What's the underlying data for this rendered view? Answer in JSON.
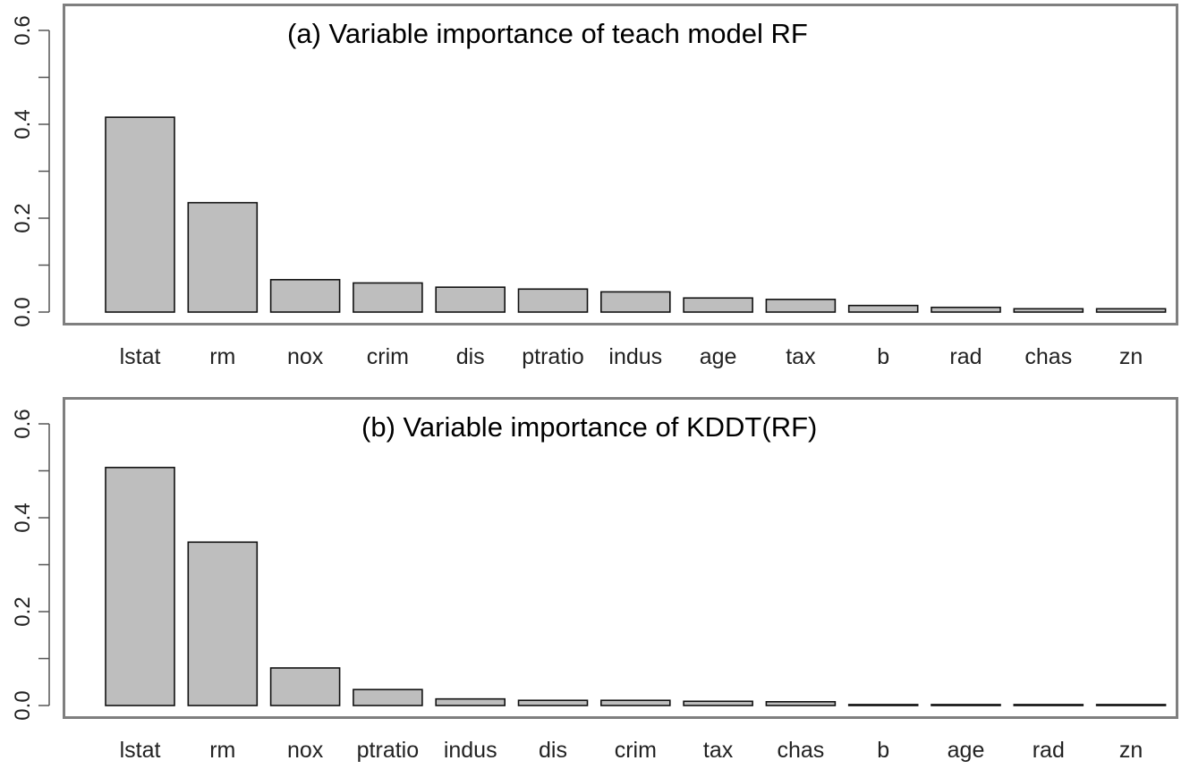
{
  "chart_data": [
    {
      "type": "bar",
      "title": "(a) Variable importance of teach model RF",
      "xlabel": "",
      "ylabel": "",
      "ylim": [
        0,
        0.6
      ],
      "yticks": [
        "0.0",
        "0.2",
        "0.4",
        "0.6"
      ],
      "categories": [
        "lstat",
        "rm",
        "nox",
        "crim",
        "dis",
        "ptratio",
        "indus",
        "age",
        "tax",
        "b",
        "rad",
        "chas",
        "zn"
      ],
      "values": [
        0.415,
        0.233,
        0.069,
        0.062,
        0.053,
        0.049,
        0.043,
        0.03,
        0.027,
        0.014,
        0.01,
        0.007,
        0.007
      ],
      "bar_color": "#bebebe",
      "frame_color": "#7f7f7f"
    },
    {
      "type": "bar",
      "title": "(b) Variable importance of KDDT(RF)",
      "xlabel": "",
      "ylabel": "",
      "ylim": [
        0,
        0.6
      ],
      "yticks": [
        "0.0",
        "0.2",
        "0.4",
        "0.6"
      ],
      "categories": [
        "lstat",
        "rm",
        "nox",
        "ptratio",
        "indus",
        "dis",
        "crim",
        "tax",
        "chas",
        "b",
        "age",
        "rad",
        "zn"
      ],
      "values": [
        0.507,
        0.348,
        0.08,
        0.034,
        0.014,
        0.011,
        0.011,
        0.009,
        0.008,
        0.002,
        0.002,
        0.002,
        0.002
      ],
      "bar_color": "#bebebe",
      "frame_color": "#7f7f7f"
    }
  ]
}
